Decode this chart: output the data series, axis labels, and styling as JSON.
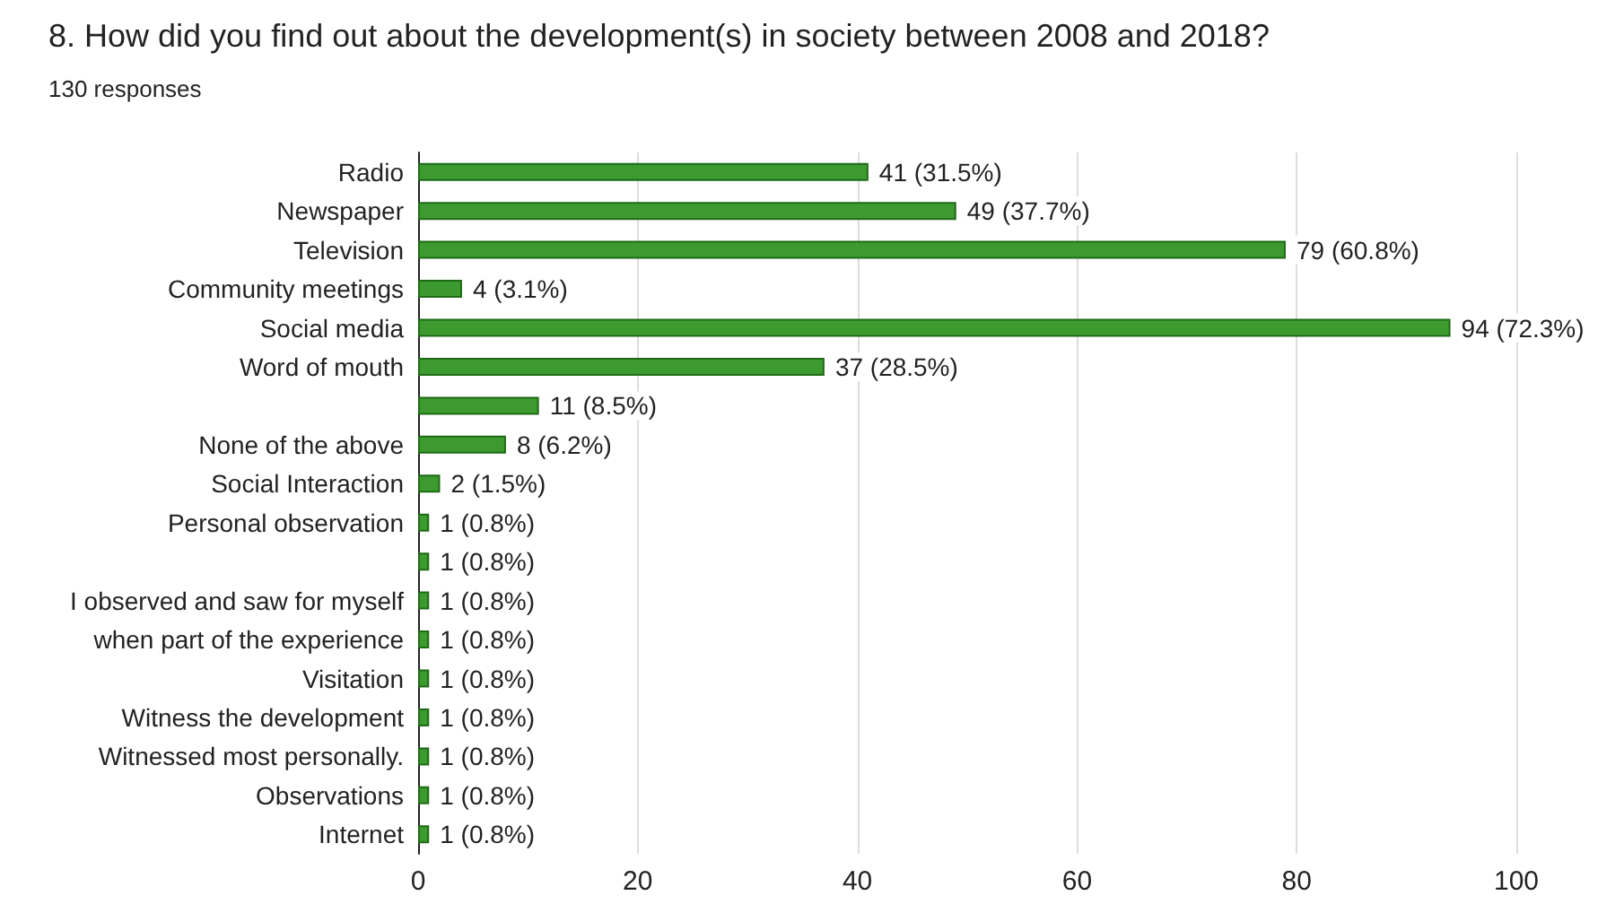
{
  "chart_data": {
    "type": "bar",
    "orientation": "horizontal",
    "title": "8. How did you find out about the development(s) in society between 2008 and 2018?",
    "subtitle": "130 responses",
    "categories": [
      "Radio",
      "Newspaper",
      "Television",
      "Community meetings",
      "Social media",
      "Word of mouth",
      null,
      "None of the above",
      "Social Interaction",
      "Personal observation",
      null,
      "I observed and saw for myself",
      "when part of the experience",
      "Visitation",
      "Witness the development",
      "Witnessed most personally.",
      "Observations",
      "Internet"
    ],
    "values": [
      41,
      49,
      79,
      4,
      94,
      37,
      11,
      8,
      2,
      1,
      1,
      1,
      1,
      1,
      1,
      1,
      1,
      1
    ],
    "value_labels": [
      "41 (31.5%)",
      "49 (37.7%)",
      "79 (60.8%)",
      "4 (3.1%)",
      "94 (72.3%)",
      "37 (28.5%)",
      "11 (8.5%)",
      "8 (6.2%)",
      "2 (1.5%)",
      "1 (0.8%)",
      "1 (0.8%)",
      "1 (0.8%)",
      "1 (0.8%)",
      "1 (0.8%)",
      "1 (0.8%)",
      "1 (0.8%)",
      "1 (0.8%)",
      "1 (0.8%)"
    ],
    "color": "#3d9a2f",
    "xlim": [
      0,
      100
    ],
    "xticks": [
      0,
      20,
      40,
      60,
      80,
      100
    ],
    "grid": "x"
  }
}
